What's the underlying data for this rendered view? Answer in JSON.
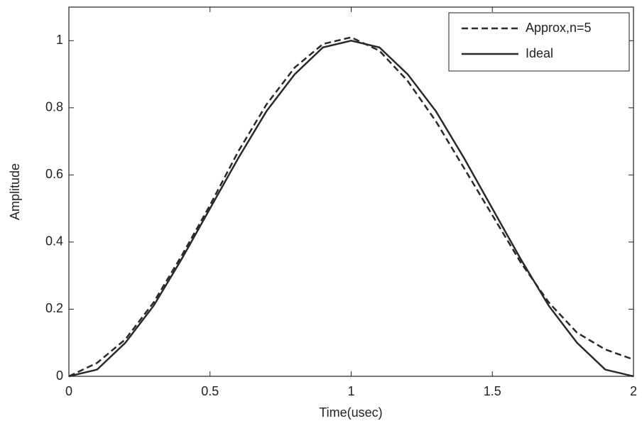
{
  "chart_data": {
    "type": "line",
    "x_label": "Time(usec)",
    "y_label": "Amplitude",
    "x": [
      0,
      0.1,
      0.2,
      0.3,
      0.4,
      0.5,
      0.6,
      0.7,
      0.8,
      0.9,
      1.0,
      1.1,
      1.2,
      1.3,
      1.4,
      1.5,
      1.6,
      1.7,
      1.8,
      1.9,
      2.0
    ],
    "series": [
      {
        "name": "Approx,n=5",
        "color": "#2a2a2a",
        "dashed": true,
        "values": [
          0.0,
          0.04,
          0.11,
          0.22,
          0.36,
          0.51,
          0.67,
          0.81,
          0.92,
          0.99,
          1.01,
          0.97,
          0.88,
          0.76,
          0.62,
          0.48,
          0.34,
          0.22,
          0.13,
          0.08,
          0.05
        ]
      },
      {
        "name": "Ideal",
        "color": "#2a2a2a",
        "dashed": false,
        "values": [
          0.0,
          0.02,
          0.1,
          0.21,
          0.35,
          0.5,
          0.65,
          0.79,
          0.9,
          0.98,
          1.0,
          0.98,
          0.9,
          0.79,
          0.65,
          0.5,
          0.35,
          0.21,
          0.1,
          0.02,
          0.0
        ]
      }
    ],
    "xlim": [
      0,
      2
    ],
    "xticks": [
      0,
      0.5,
      1,
      1.5,
      2
    ],
    "ylim": [
      0,
      1.1
    ],
    "yticks": [
      0,
      0.2,
      0.4,
      0.6,
      0.8,
      1
    ],
    "legend": "top-right"
  }
}
